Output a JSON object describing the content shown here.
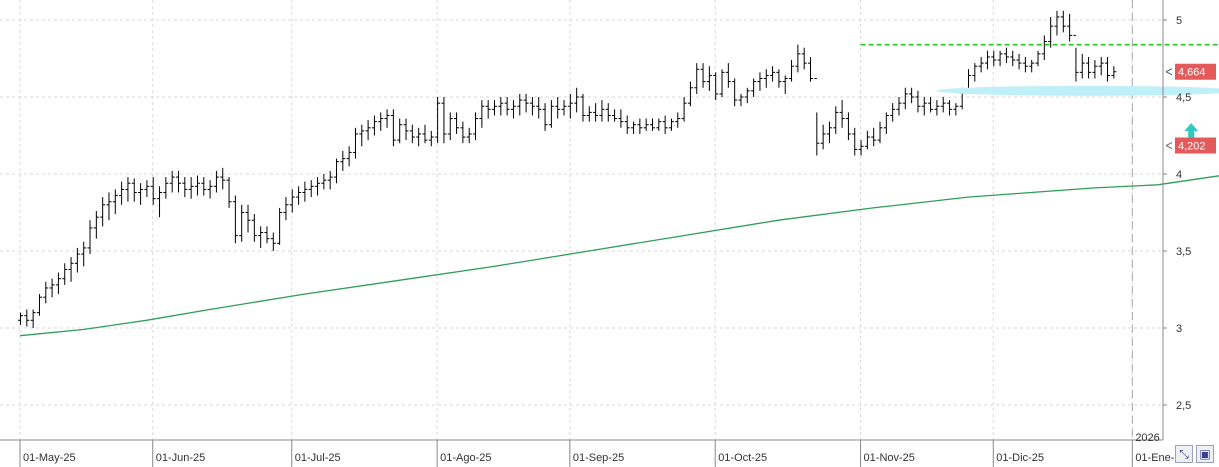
{
  "chart_data": {
    "type": "ohlc",
    "title": "",
    "xlabel": "",
    "ylabel": "",
    "ylim": [
      2.25,
      5.1
    ],
    "y_ticks": [
      2.5,
      3,
      3.5,
      4,
      4.5,
      5
    ],
    "y_tick_labels": [
      "2,5",
      "3",
      "3,5",
      "4",
      "4,5",
      "5"
    ],
    "x_tick_labels": [
      "01-May-25",
      "01-Jun-25",
      "01-Jul-25",
      "01-Ago-25",
      "01-Sep-25",
      "01-Oct-25",
      "01-Nov-25",
      "01-Dic-25",
      "01-Ene-26"
    ],
    "x_tick_bar_index": [
      0,
      21,
      43,
      66,
      87,
      110,
      133,
      154,
      176
    ],
    "year_marker": {
      "label": "2026",
      "bar_index": 176
    },
    "last_price_label": "4,664",
    "moving_average_label": "4,202",
    "colors": {
      "bars": "#000000",
      "moving_average": "#2e9e57",
      "resistance": "#22cc22",
      "support_zone": "#bff0f8",
      "arrow": "#2fc9c0",
      "price_tag": "#e45a5a"
    },
    "resistance_level": {
      "value": 4.84,
      "from_bar": 133,
      "to_bar": 191
    },
    "support_zone": {
      "value": 4.54,
      "from_bar": 145,
      "to_bar": 191
    },
    "arrow_marker": {
      "bar_index": 185,
      "value": 4.22,
      "direction": "up"
    },
    "series": [
      {
        "kind": "ohlc",
        "x_start": "2025-04-28",
        "bars": [
          [
            3.05,
            3.1,
            3.02,
            3.08
          ],
          [
            3.08,
            3.12,
            3.01,
            3.05
          ],
          [
            3.05,
            3.12,
            3.0,
            3.1
          ],
          [
            3.1,
            3.22,
            3.08,
            3.2
          ],
          [
            3.2,
            3.3,
            3.16,
            3.26
          ],
          [
            3.26,
            3.32,
            3.2,
            3.28
          ],
          [
            3.28,
            3.36,
            3.22,
            3.32
          ],
          [
            3.32,
            3.42,
            3.28,
            3.38
          ],
          [
            3.38,
            3.46,
            3.3,
            3.42
          ],
          [
            3.42,
            3.52,
            3.36,
            3.48
          ],
          [
            3.48,
            3.56,
            3.4,
            3.52
          ],
          [
            3.52,
            3.7,
            3.48,
            3.65
          ],
          [
            3.65,
            3.76,
            3.58,
            3.72
          ],
          [
            3.72,
            3.85,
            3.66,
            3.8
          ],
          [
            3.8,
            3.88,
            3.7,
            3.82
          ],
          [
            3.82,
            3.9,
            3.74,
            3.86
          ],
          [
            3.86,
            3.95,
            3.8,
            3.9
          ],
          [
            3.9,
            3.98,
            3.82,
            3.94
          ],
          [
            3.94,
            3.97,
            3.82,
            3.88
          ],
          [
            3.88,
            3.94,
            3.8,
            3.9
          ],
          [
            3.9,
            3.96,
            3.85,
            3.92
          ],
          [
            3.92,
            3.98,
            3.8,
            3.84
          ],
          [
            3.84,
            3.92,
            3.72,
            3.88
          ],
          [
            3.88,
            3.98,
            3.84,
            3.94
          ],
          [
            3.94,
            4.02,
            3.88,
            3.98
          ],
          [
            3.98,
            4.02,
            3.88,
            3.94
          ],
          [
            3.94,
            3.98,
            3.85,
            3.9
          ],
          [
            3.9,
            3.98,
            3.84,
            3.92
          ],
          [
            3.92,
            3.99,
            3.86,
            3.94
          ],
          [
            3.94,
            3.98,
            3.86,
            3.9
          ],
          [
            3.9,
            3.96,
            3.84,
            3.92
          ],
          [
            3.92,
            4.02,
            3.88,
            3.98
          ],
          [
            3.98,
            4.04,
            3.9,
            3.96
          ],
          [
            3.96,
            3.98,
            3.78,
            3.82
          ],
          [
            3.82,
            3.86,
            3.55,
            3.6
          ],
          [
            3.6,
            3.8,
            3.56,
            3.75
          ],
          [
            3.75,
            3.8,
            3.62,
            3.7
          ],
          [
            3.7,
            3.74,
            3.56,
            3.6
          ],
          [
            3.6,
            3.66,
            3.52,
            3.62
          ],
          [
            3.62,
            3.66,
            3.55,
            3.58
          ],
          [
            3.58,
            3.62,
            3.5,
            3.55
          ],
          [
            3.55,
            3.78,
            3.54,
            3.75
          ],
          [
            3.75,
            3.85,
            3.7,
            3.8
          ],
          [
            3.8,
            3.9,
            3.75,
            3.85
          ],
          [
            3.85,
            3.92,
            3.8,
            3.88
          ],
          [
            3.88,
            3.95,
            3.82,
            3.9
          ],
          [
            3.9,
            3.96,
            3.85,
            3.92
          ],
          [
            3.92,
            3.98,
            3.86,
            3.94
          ],
          [
            3.94,
            4.0,
            3.9,
            3.96
          ],
          [
            3.96,
            4.02,
            3.9,
            3.98
          ],
          [
            3.98,
            4.1,
            3.94,
            4.08
          ],
          [
            4.08,
            4.15,
            4.02,
            4.1
          ],
          [
            4.1,
            4.18,
            4.05,
            4.14
          ],
          [
            4.14,
            4.3,
            4.1,
            4.26
          ],
          [
            4.26,
            4.32,
            4.18,
            4.28
          ],
          [
            4.28,
            4.35,
            4.22,
            4.3
          ],
          [
            4.3,
            4.38,
            4.25,
            4.34
          ],
          [
            4.34,
            4.4,
            4.28,
            4.36
          ],
          [
            4.36,
            4.42,
            4.3,
            4.38
          ],
          [
            4.38,
            4.42,
            4.18,
            4.22
          ],
          [
            4.22,
            4.36,
            4.2,
            4.32
          ],
          [
            4.32,
            4.36,
            4.22,
            4.28
          ],
          [
            4.28,
            4.32,
            4.2,
            4.24
          ],
          [
            4.24,
            4.3,
            4.18,
            4.26
          ],
          [
            4.26,
            4.32,
            4.2,
            4.22
          ],
          [
            4.22,
            4.28,
            4.18,
            4.24
          ],
          [
            4.24,
            4.5,
            4.2,
            4.46
          ],
          [
            4.46,
            4.5,
            4.2,
            4.26
          ],
          [
            4.26,
            4.4,
            4.22,
            4.36
          ],
          [
            4.36,
            4.4,
            4.26,
            4.3
          ],
          [
            4.3,
            4.34,
            4.2,
            4.24
          ],
          [
            4.24,
            4.3,
            4.2,
            4.26
          ],
          [
            4.26,
            4.4,
            4.22,
            4.36
          ],
          [
            4.36,
            4.48,
            4.3,
            4.44
          ],
          [
            4.44,
            4.48,
            4.36,
            4.42
          ],
          [
            4.42,
            4.48,
            4.38,
            4.44
          ],
          [
            4.44,
            4.5,
            4.38,
            4.46
          ],
          [
            4.46,
            4.5,
            4.38,
            4.42
          ],
          [
            4.42,
            4.48,
            4.36,
            4.44
          ],
          [
            4.44,
            4.52,
            4.38,
            4.48
          ],
          [
            4.48,
            4.52,
            4.4,
            4.46
          ],
          [
            4.46,
            4.5,
            4.38,
            4.44
          ],
          [
            4.44,
            4.5,
            4.36,
            4.42
          ],
          [
            4.42,
            4.46,
            4.28,
            4.32
          ],
          [
            4.32,
            4.48,
            4.3,
            4.44
          ],
          [
            4.44,
            4.5,
            4.36,
            4.42
          ],
          [
            4.42,
            4.48,
            4.38,
            4.44
          ],
          [
            4.44,
            4.52,
            4.36,
            4.46
          ],
          [
            4.46,
            4.56,
            4.4,
            4.5
          ],
          [
            4.5,
            4.52,
            4.34,
            4.38
          ],
          [
            4.38,
            4.44,
            4.34,
            4.4
          ],
          [
            4.4,
            4.46,
            4.34,
            4.38
          ],
          [
            4.38,
            4.48,
            4.34,
            4.42
          ],
          [
            4.42,
            4.46,
            4.34,
            4.38
          ],
          [
            4.38,
            4.42,
            4.34,
            4.36
          ],
          [
            4.36,
            4.42,
            4.3,
            4.34
          ],
          [
            4.34,
            4.38,
            4.26,
            4.3
          ],
          [
            4.3,
            4.34,
            4.26,
            4.32
          ],
          [
            4.32,
            4.36,
            4.26,
            4.3
          ],
          [
            4.3,
            4.36,
            4.28,
            4.32
          ],
          [
            4.32,
            4.36,
            4.28,
            4.3
          ],
          [
            4.3,
            4.36,
            4.28,
            4.34
          ],
          [
            4.34,
            4.38,
            4.26,
            4.3
          ],
          [
            4.3,
            4.36,
            4.28,
            4.34
          ],
          [
            4.34,
            4.4,
            4.3,
            4.36
          ],
          [
            4.36,
            4.5,
            4.34,
            4.46
          ],
          [
            4.46,
            4.6,
            4.44,
            4.56
          ],
          [
            4.56,
            4.72,
            4.52,
            4.68
          ],
          [
            4.68,
            4.72,
            4.56,
            4.6
          ],
          [
            4.6,
            4.7,
            4.54,
            4.64
          ],
          [
            4.64,
            4.66,
            4.48,
            4.52
          ],
          [
            4.52,
            4.68,
            4.5,
            4.66
          ],
          [
            4.66,
            4.72,
            4.56,
            4.6
          ],
          [
            4.6,
            4.62,
            4.44,
            4.48
          ],
          [
            4.48,
            4.52,
            4.44,
            4.5
          ],
          [
            4.5,
            4.56,
            4.46,
            4.54
          ],
          [
            4.54,
            4.62,
            4.5,
            4.6
          ],
          [
            4.6,
            4.66,
            4.54,
            4.62
          ],
          [
            4.62,
            4.68,
            4.56,
            4.64
          ],
          [
            4.64,
            4.7,
            4.6,
            4.66
          ],
          [
            4.66,
            4.68,
            4.56,
            4.6
          ],
          [
            4.6,
            4.64,
            4.52,
            4.62
          ],
          [
            4.62,
            4.74,
            4.6,
            4.7
          ],
          [
            4.7,
            4.84,
            4.66,
            4.78
          ],
          [
            4.78,
            4.82,
            4.68,
            4.72
          ],
          [
            4.72,
            4.76,
            4.6,
            4.62
          ],
          [
            4.62,
            4.4,
            4.12,
            4.2
          ],
          [
            4.2,
            4.32,
            4.16,
            4.26
          ],
          [
            4.26,
            4.34,
            4.2,
            4.3
          ],
          [
            4.3,
            4.44,
            4.26,
            4.4
          ],
          [
            4.4,
            4.48,
            4.3,
            4.36
          ],
          [
            4.36,
            4.4,
            4.22,
            4.26
          ],
          [
            4.26,
            4.3,
            4.12,
            4.16
          ],
          [
            4.16,
            4.22,
            4.12,
            4.18
          ],
          [
            4.18,
            4.28,
            4.16,
            4.24
          ],
          [
            4.24,
            4.3,
            4.18,
            4.22
          ],
          [
            4.22,
            4.34,
            4.2,
            4.3
          ],
          [
            4.3,
            4.4,
            4.26,
            4.38
          ],
          [
            4.38,
            4.46,
            4.34,
            4.42
          ],
          [
            4.42,
            4.5,
            4.38,
            4.46
          ],
          [
            4.46,
            4.56,
            4.42,
            4.52
          ],
          [
            4.52,
            4.56,
            4.46,
            4.5
          ],
          [
            4.5,
            4.54,
            4.4,
            4.44
          ],
          [
            4.44,
            4.5,
            4.38,
            4.46
          ],
          [
            4.46,
            4.5,
            4.4,
            4.42
          ],
          [
            4.42,
            4.48,
            4.38,
            4.44
          ],
          [
            4.44,
            4.5,
            4.4,
            4.46
          ],
          [
            4.46,
            4.48,
            4.38,
            4.42
          ],
          [
            4.42,
            4.46,
            4.38,
            4.44
          ],
          [
            4.44,
            4.56,
            4.42,
            4.54
          ],
          [
            4.54,
            4.68,
            4.52,
            4.64
          ],
          [
            4.64,
            4.72,
            4.6,
            4.7
          ],
          [
            4.7,
            4.76,
            4.66,
            4.72
          ],
          [
            4.72,
            4.8,
            4.68,
            4.76
          ],
          [
            4.76,
            4.8,
            4.7,
            4.74
          ],
          [
            4.74,
            4.8,
            4.7,
            4.78
          ],
          [
            4.78,
            4.82,
            4.72,
            4.76
          ],
          [
            4.76,
            4.8,
            4.7,
            4.74
          ],
          [
            4.74,
            4.78,
            4.68,
            4.72
          ],
          [
            4.72,
            4.76,
            4.66,
            4.7
          ],
          [
            4.7,
            4.74,
            4.66,
            4.72
          ],
          [
            4.72,
            4.8,
            4.7,
            4.78
          ],
          [
            4.78,
            4.9,
            4.74,
            4.86
          ],
          [
            4.86,
            5.02,
            4.82,
            4.96
          ],
          [
            4.96,
            5.06,
            4.9,
            5.02
          ],
          [
            5.02,
            5.06,
            4.92,
            4.96
          ],
          [
            4.96,
            5.04,
            4.86,
            4.9
          ],
          [
            4.9,
            4.82,
            4.6,
            4.66
          ],
          [
            4.66,
            4.78,
            4.62,
            4.72
          ],
          [
            4.72,
            4.76,
            4.62,
            4.66
          ],
          [
            4.66,
            4.74,
            4.62,
            4.7
          ],
          [
            4.7,
            4.76,
            4.64,
            4.72
          ],
          [
            4.72,
            4.76,
            4.6,
            4.64
          ],
          [
            4.64,
            4.7,
            4.62,
            4.664
          ]
        ]
      },
      {
        "kind": "line",
        "points": [
          [
            0,
            2.95
          ],
          [
            10,
            2.99
          ],
          [
            20,
            3.05
          ],
          [
            30,
            3.12
          ],
          [
            45,
            3.22
          ],
          [
            60,
            3.31
          ],
          [
            75,
            3.4
          ],
          [
            90,
            3.5
          ],
          [
            105,
            3.6
          ],
          [
            120,
            3.7
          ],
          [
            135,
            3.78
          ],
          [
            150,
            3.85
          ],
          [
            160,
            3.88
          ],
          [
            170,
            3.91
          ],
          [
            180,
            3.93
          ],
          [
            185,
            3.96
          ],
          [
            195,
            4.02
          ],
          [
            205,
            4.1
          ],
          [
            215,
            4.2
          ]
        ],
        "x_range_bars": [
          0,
          215
        ]
      }
    ]
  }
}
